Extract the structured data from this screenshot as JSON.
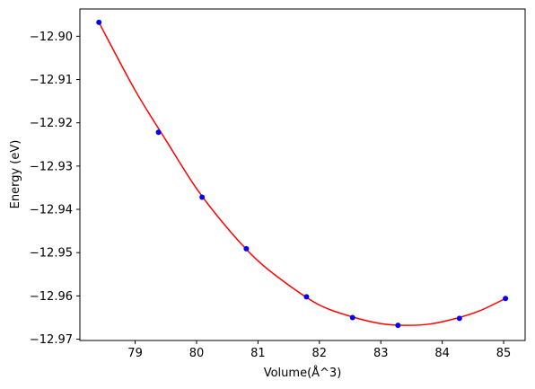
{
  "chart_data": {
    "type": "scatter",
    "xlabel": "Volume(Å^3)",
    "ylabel": "Energy (eV)",
    "xlim": [
      78.1,
      85.35
    ],
    "ylim": [
      -12.9703,
      -12.8937
    ],
    "xticks": [
      79,
      80,
      81,
      82,
      83,
      84,
      85
    ],
    "xtick_labels": [
      "79",
      "80",
      "81",
      "82",
      "83",
      "84",
      "85"
    ],
    "yticks": [
      -12.97,
      -12.96,
      -12.95,
      -12.94,
      -12.93,
      -12.92,
      -12.91,
      -12.9
    ],
    "ytick_labels": [
      "−12.97",
      "−12.96",
      "−12.95",
      "−12.94",
      "−12.93",
      "−12.92",
      "−12.91",
      "−12.90"
    ],
    "grid": false,
    "series": [
      {
        "kind": "points",
        "color": "#0000ff",
        "x": [
          78.41,
          79.38,
          80.09,
          80.81,
          81.79,
          82.54,
          83.28,
          84.28,
          85.03
        ],
        "y": [
          -12.8968,
          -12.9222,
          -12.9372,
          -12.9491,
          -12.9602,
          -12.965,
          -12.9668,
          -12.9652,
          -12.9606
        ]
      },
      {
        "kind": "fit-curve",
        "color": "#ff0000",
        "x": [
          78.41,
          79.0,
          79.5,
          80.0,
          80.5,
          81.0,
          81.5,
          82.0,
          82.5,
          83.0,
          83.4,
          83.8,
          84.2,
          84.6,
          85.03
        ],
        "y": [
          -12.8968,
          -12.9125,
          -12.924,
          -12.9352,
          -12.9443,
          -12.9519,
          -12.9575,
          -12.9621,
          -12.9647,
          -12.9664,
          -12.9668,
          -12.9665,
          -12.9653,
          -12.9635,
          -12.9606
        ]
      }
    ]
  }
}
